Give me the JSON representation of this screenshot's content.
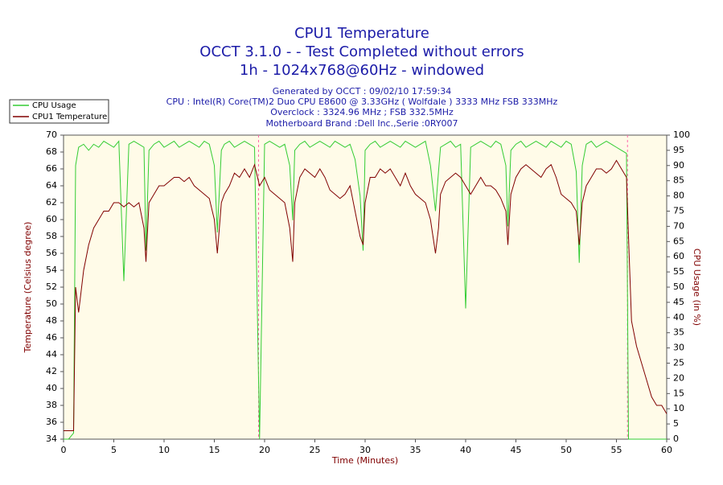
{
  "chart_data": {
    "type": "line",
    "title": "CPU1 Temperature",
    "subtitle": [
      "OCCT 3.1.0 -  - Test Completed without errors",
      "1h - 1024x768@60Hz - windowed"
    ],
    "info": [
      "Generated by OCCT : 09/02/10 17:59:34",
      "CPU : Intel(R) Core(TM)2 Duo CPU E8600 @ 3.33GHz ( Wolfdale ) 3333 MHz FSB 333MHz",
      "Overclock : 3324.96 MHz ; FSB 332.5MHz",
      "Motherboard Brand :Dell Inc.,Serie :0RY007"
    ],
    "xlabel": "Time (Minutes)",
    "ylabel": "Temperature (Celsius degree)",
    "y2label": "CPU Usage (in %)",
    "x": [
      0,
      0.5,
      1,
      1.2,
      1.5,
      2,
      2.5,
      3,
      3.5,
      4,
      4.5,
      5,
      5.5,
      6,
      6.5,
      7,
      7.5,
      8,
      8.2,
      8.5,
      9,
      9.5,
      10,
      10.5,
      11,
      11.5,
      12,
      12.5,
      13,
      13.5,
      14,
      14.5,
      15,
      15.3,
      15.7,
      16,
      16.5,
      17,
      17.5,
      18,
      18.5,
      19,
      19.5,
      20,
      20.5,
      21,
      21.5,
      22,
      22.5,
      22.8,
      23,
      23.5,
      24,
      24.5,
      25,
      25.5,
      26,
      26.5,
      27,
      27.5,
      28,
      28.5,
      29,
      29.5,
      29.8,
      30,
      30.5,
      31,
      31.5,
      32,
      32.5,
      33,
      33.5,
      34,
      34.5,
      35,
      35.5,
      36,
      36.5,
      37,
      37.3,
      37.5,
      38,
      38.5,
      39,
      39.5,
      40,
      40.5,
      41,
      41.5,
      42,
      42.5,
      43,
      43.5,
      44,
      44.2,
      44.5,
      45,
      45.5,
      46,
      46.5,
      47,
      47.5,
      48,
      48.5,
      49,
      49.5,
      50,
      50.5,
      51,
      51.3,
      51.6,
      52,
      52.5,
      53,
      53.5,
      54,
      54.5,
      55,
      55.5,
      56,
      56.2,
      56.5,
      57,
      57.5,
      58,
      58.5,
      59,
      59.5,
      60
    ],
    "series": [
      {
        "name": "CPU Usage",
        "color": "#33cc33",
        "axis": "y2",
        "values": [
          0,
          0,
          2,
          90,
          96,
          97,
          95,
          97,
          96,
          98,
          97,
          96,
          98,
          52,
          97,
          98,
          97,
          96,
          62,
          95,
          97,
          98,
          96,
          97,
          98,
          96,
          97,
          98,
          97,
          96,
          98,
          97,
          90,
          68,
          95,
          97,
          98,
          96,
          97,
          98,
          97,
          96,
          0,
          97,
          98,
          97,
          96,
          97,
          90,
          72,
          95,
          97,
          98,
          96,
          97,
          98,
          97,
          96,
          98,
          97,
          96,
          97,
          92,
          80,
          62,
          95,
          97,
          98,
          96,
          97,
          98,
          97,
          96,
          98,
          97,
          96,
          97,
          98,
          90,
          75,
          88,
          96,
          97,
          98,
          96,
          97,
          43,
          96,
          97,
          98,
          97,
          96,
          98,
          97,
          90,
          70,
          95,
          97,
          98,
          96,
          97,
          98,
          97,
          96,
          98,
          97,
          96,
          98,
          97,
          88,
          58,
          90,
          97,
          98,
          96,
          97,
          98,
          97,
          96,
          95,
          94,
          0,
          0,
          0,
          0,
          0,
          0,
          0,
          0,
          0
        ]
      },
      {
        "name": "CPU1 Temperature",
        "color": "#800000",
        "values": [
          35,
          35,
          35,
          52,
          49,
          54,
          57,
          59,
          60,
          61,
          61,
          62,
          62,
          61.5,
          62,
          61.5,
          62,
          59,
          55,
          62,
          63,
          64,
          64,
          64.5,
          65,
          65,
          64.5,
          65,
          64,
          63.5,
          63,
          62.5,
          60,
          56,
          62,
          63,
          64,
          65.5,
          65,
          66,
          65,
          66.5,
          64,
          65,
          63.5,
          63,
          62.5,
          62,
          59,
          55,
          62,
          65,
          66,
          65.5,
          65,
          66,
          65,
          63.5,
          63,
          62.5,
          63,
          64,
          61,
          58,
          57,
          62,
          65,
          65,
          66,
          65.5,
          66,
          65,
          64,
          65.5,
          64,
          63,
          62.5,
          62,
          60,
          56,
          59,
          63,
          64.5,
          65,
          65.5,
          65,
          64,
          63,
          64,
          65,
          64,
          64,
          63.5,
          62.5,
          61,
          57,
          63,
          65,
          66,
          66.5,
          66,
          65.5,
          65,
          66,
          66.5,
          65,
          63,
          62.5,
          62,
          61,
          57,
          62,
          64,
          65,
          66,
          66,
          65.5,
          66,
          67,
          66,
          65,
          58,
          48,
          45,
          43,
          41,
          39,
          38,
          38,
          37
        ]
      }
    ],
    "markers_x": [
      19.4,
      56.1
    ],
    "marker_color": "#ff66aa",
    "xlim": [
      0,
      60
    ],
    "xticks": [
      0,
      5,
      10,
      15,
      20,
      25,
      30,
      35,
      40,
      45,
      50,
      55,
      60
    ],
    "ylim": [
      34,
      70
    ],
    "yticks": [
      34,
      36,
      38,
      40,
      42,
      44,
      46,
      48,
      50,
      52,
      54,
      56,
      58,
      60,
      62,
      64,
      66,
      68,
      70
    ],
    "y2lim": [
      0,
      100
    ],
    "y2ticks": [
      0,
      5,
      10,
      15,
      20,
      25,
      30,
      35,
      40,
      45,
      50,
      55,
      60,
      65,
      70,
      75,
      80,
      85,
      90,
      95,
      100
    ],
    "legend": "top-left",
    "grid": false
  }
}
